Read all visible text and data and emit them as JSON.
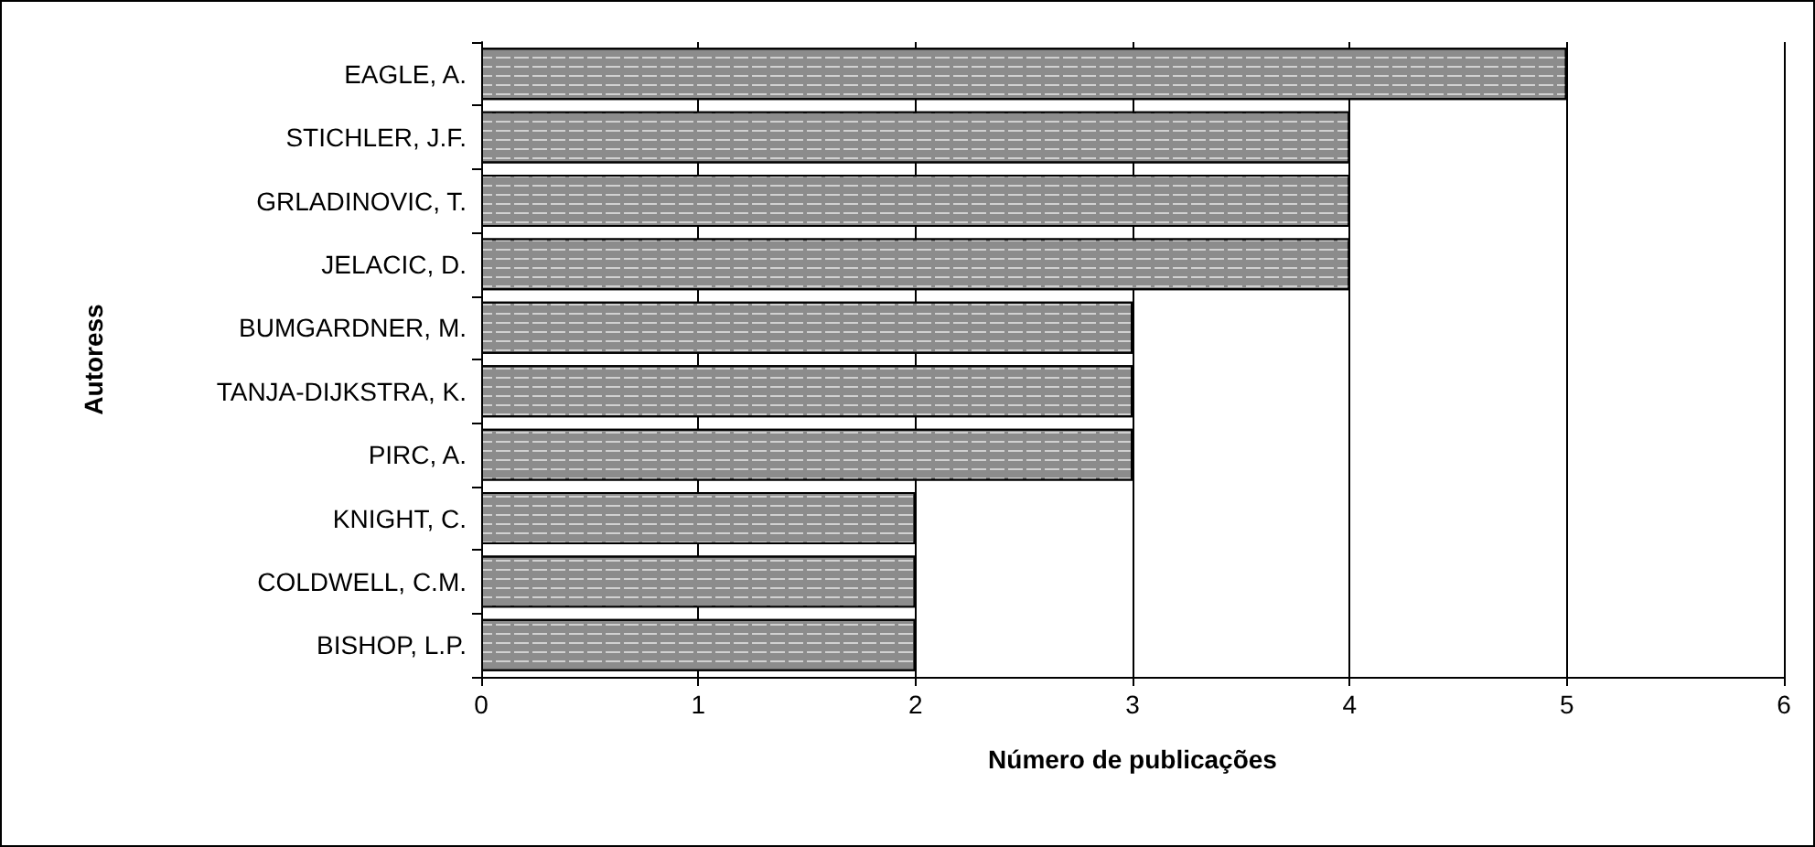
{
  "chart_data": {
    "type": "bar",
    "orientation": "horizontal",
    "xlabel": "Número de publicações",
    "ylabel": "Autoress",
    "categories": [
      "EAGLE, A.",
      "STICHLER, J.F.",
      "GRLADINOVIC, T.",
      "JELACIC, D.",
      "BUMGARDNER, M.",
      "TANJA-DIJKSTRA, K.",
      "PIRC, A.",
      "KNIGHT, C.",
      "COLDWELL, C.M.",
      "BISHOP, L.P."
    ],
    "values": [
      5,
      4,
      4,
      4,
      3,
      3,
      3,
      2,
      2,
      2
    ],
    "color": "#8c8c8c",
    "xlim": [
      0,
      6
    ],
    "xticks": [
      0,
      1,
      2,
      3,
      4,
      5,
      6
    ],
    "grid": "x"
  }
}
